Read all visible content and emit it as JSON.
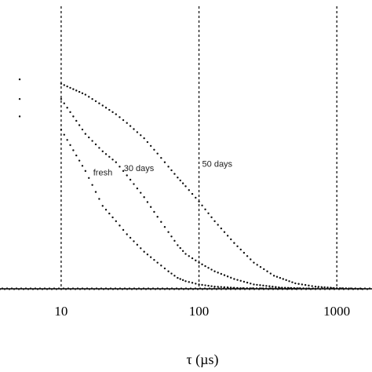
{
  "chart_data": {
    "type": "scatter",
    "title": "",
    "xlabel": "τ (µs)",
    "ylabel": "",
    "x_scale": "log",
    "xlim": [
      3.6,
      1800
    ],
    "ylim": [
      0,
      1.0
    ],
    "x_ticks": [
      10,
      100,
      1000
    ],
    "x_tick_labels": [
      "10",
      "100",
      "1000"
    ],
    "grid": "vertical dashed lines at x ticks",
    "legend": "none",
    "series": [
      {
        "name": "fresh",
        "points": [
          [
            5,
            0.79
          ],
          [
            10,
            0.73
          ],
          [
            15,
            0.54
          ],
          [
            20,
            0.38
          ],
          [
            25,
            0.31
          ],
          [
            30,
            0.25
          ],
          [
            40,
            0.17
          ],
          [
            50,
            0.12
          ],
          [
            60,
            0.08
          ],
          [
            70,
            0.05
          ],
          [
            80,
            0.035
          ],
          [
            100,
            0.02
          ],
          [
            130,
            0.01
          ],
          [
            200,
            0.003
          ],
          [
            500,
            0.0
          ]
        ]
      },
      {
        "name": "30 days",
        "points": [
          [
            5,
            0.87
          ],
          [
            10,
            0.87
          ],
          [
            15,
            0.71
          ],
          [
            20,
            0.63
          ],
          [
            25,
            0.58
          ],
          [
            30,
            0.52
          ],
          [
            40,
            0.42
          ],
          [
            50,
            0.33
          ],
          [
            60,
            0.26
          ],
          [
            70,
            0.2
          ],
          [
            80,
            0.16
          ],
          [
            100,
            0.12
          ],
          [
            130,
            0.08
          ],
          [
            180,
            0.045
          ],
          [
            250,
            0.02
          ],
          [
            400,
            0.005
          ],
          [
            700,
            0.0
          ]
        ]
      },
      {
        "name": "50 days",
        "points": [
          [
            5,
            0.96
          ],
          [
            10,
            0.94
          ],
          [
            15,
            0.89
          ],
          [
            20,
            0.84
          ],
          [
            25,
            0.8
          ],
          [
            30,
            0.76
          ],
          [
            40,
            0.69
          ],
          [
            50,
            0.62
          ],
          [
            60,
            0.56
          ],
          [
            70,
            0.51
          ],
          [
            80,
            0.47
          ],
          [
            100,
            0.4
          ],
          [
            130,
            0.31
          ],
          [
            180,
            0.21
          ],
          [
            250,
            0.12
          ],
          [
            350,
            0.06
          ],
          [
            500,
            0.025
          ],
          [
            700,
            0.01
          ],
          [
            1000,
            0.003
          ],
          [
            1500,
            0.0
          ]
        ]
      }
    ],
    "annotations": [
      {
        "text": "fresh",
        "x": 18,
        "y": 0.52
      },
      {
        "text": "30 days",
        "x": 30,
        "y": 0.54
      },
      {
        "text": "50 days",
        "x": 100,
        "y": 0.56
      }
    ]
  }
}
